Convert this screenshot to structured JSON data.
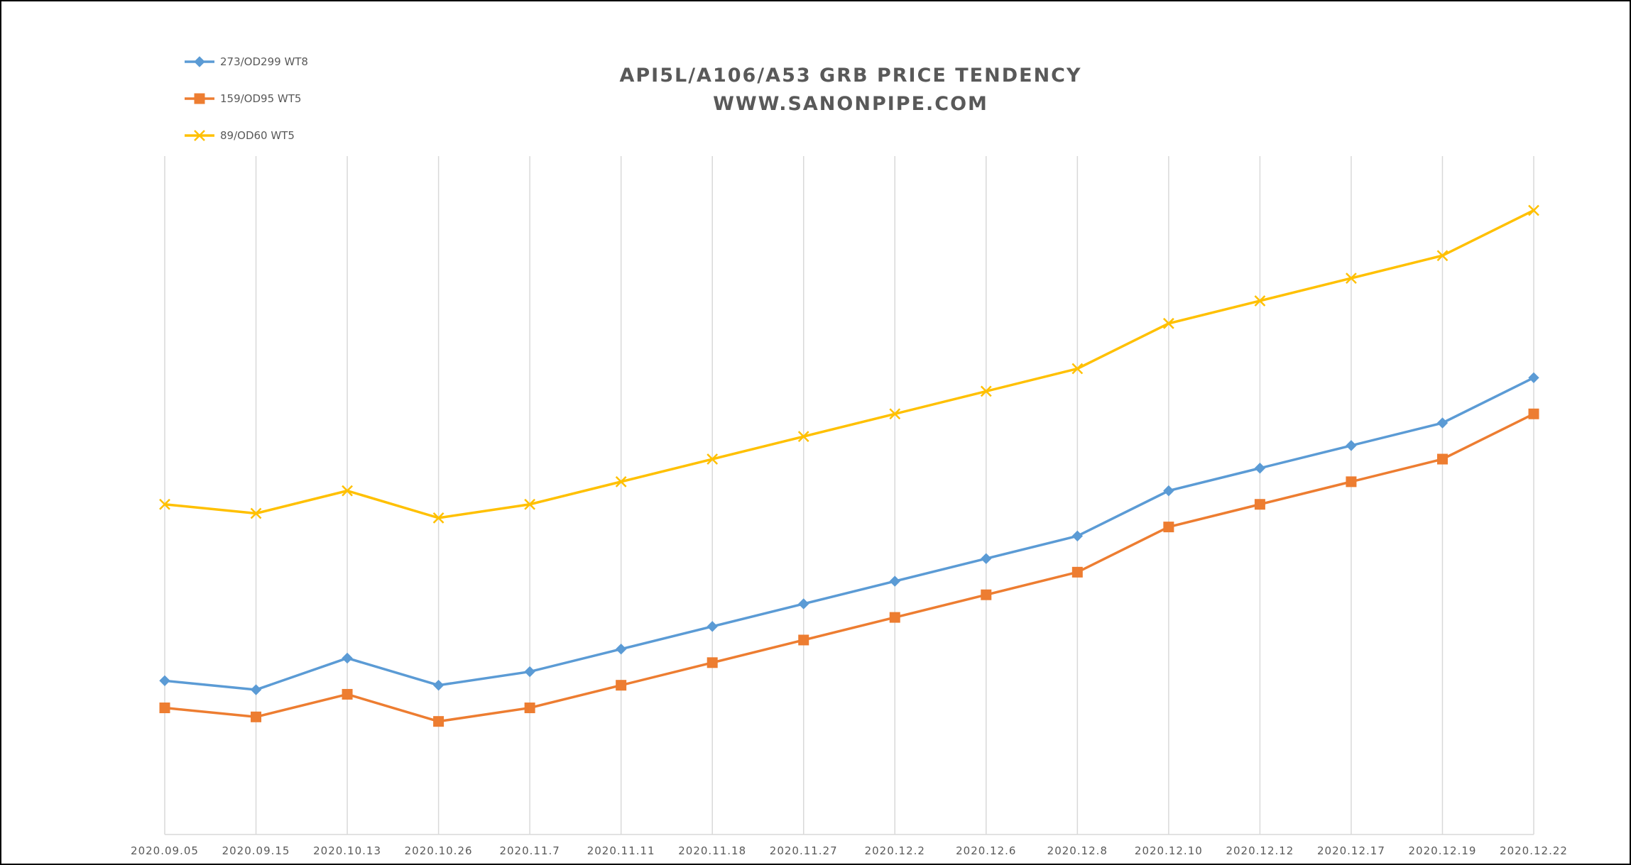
{
  "chart_data": {
    "type": "line",
    "title": "API5L/A106/A53 GRB PRICE TENDENCY",
    "subtitle": "WWW.SANONPIPE.COM",
    "xlabel": "",
    "ylabel": "",
    "ylim": [
      0,
      1500
    ],
    "grid": "vertical",
    "legend_position": "top-left",
    "categories": [
      "2020.09.05",
      "2020.09.15",
      "2020.10.13",
      "2020.10.26",
      "2020.11.7",
      "2020.11.11",
      "2020.11.18",
      "2020.11.27",
      "2020.12.2",
      "2020.12.6",
      "2020.12.8",
      "2020.12.10",
      "2020.12.12",
      "2020.12.17",
      "2020.12.19",
      "2020.12.22"
    ],
    "series": [
      {
        "name": "273/OD299 WT8",
        "color": "#5B9BD5",
        "marker": "diamond",
        "values": [
          340,
          320,
          390,
          330,
          360,
          410,
          460,
          510,
          560,
          610,
          660,
          760,
          810,
          860,
          910,
          1010
        ]
      },
      {
        "name": "159/OD95 WT5",
        "color": "#ED7D31",
        "marker": "square",
        "values": [
          280,
          260,
          310,
          250,
          280,
          330,
          380,
          430,
          480,
          530,
          580,
          680,
          730,
          780,
          830,
          930
        ]
      },
      {
        "name": "89/OD60 WT5",
        "color": "#FFC000",
        "marker": "x",
        "values": [
          730,
          710,
          760,
          700,
          730,
          780,
          830,
          880,
          930,
          980,
          1030,
          1130,
          1180,
          1230,
          1280,
          1380
        ]
      }
    ]
  }
}
